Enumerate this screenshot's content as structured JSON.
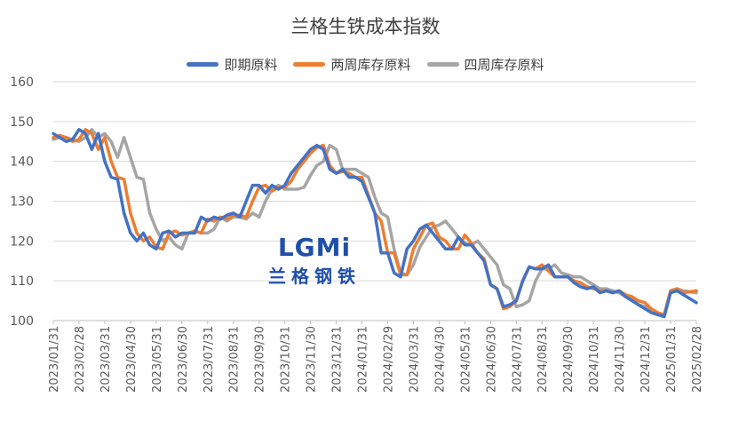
{
  "chart_data": {
    "type": "line",
    "title": "兰格生铁成本指数",
    "ylim": [
      100,
      160
    ],
    "yticks": [
      100,
      110,
      120,
      130,
      140,
      150,
      160
    ],
    "legend_position": "top",
    "grid": "horizontal",
    "x_tick_labels": [
      "2023/01/31",
      "2023/02/28",
      "2023/03/31",
      "2023/04/30",
      "2023/05/31",
      "2023/06/30",
      "2023/07/31",
      "2023/08/31",
      "2023/09/30",
      "2023/10/31",
      "2023/11/30",
      "2023/12/31",
      "2024/01/31",
      "2024/02/29",
      "2024/03/31",
      "2024/04/30",
      "2024/05/31",
      "2024/06/30",
      "2024/07/31",
      "2024/08/31",
      "2024/09/30",
      "2024/10/31",
      "2024/11/30",
      "2024/12/31",
      "2025/01/31",
      "2025/02/28"
    ],
    "series": [
      {
        "name": "即期原料",
        "color": "#4472c4",
        "points": [
          [
            0,
            147
          ],
          [
            0.25,
            146
          ],
          [
            0.5,
            145
          ],
          [
            0.75,
            145.5
          ],
          [
            1,
            148
          ],
          [
            1.25,
            147
          ],
          [
            1.5,
            143
          ],
          [
            1.75,
            147
          ],
          [
            2,
            140
          ],
          [
            2.25,
            136
          ],
          [
            2.5,
            135.5
          ],
          [
            2.75,
            127
          ],
          [
            3,
            122
          ],
          [
            3.25,
            120
          ],
          [
            3.5,
            122
          ],
          [
            3.75,
            119
          ],
          [
            4,
            118
          ],
          [
            4.25,
            122
          ],
          [
            4.5,
            122.5
          ],
          [
            4.75,
            121
          ],
          [
            5,
            122
          ],
          [
            5.25,
            122
          ],
          [
            5.5,
            122
          ],
          [
            5.75,
            126
          ],
          [
            6,
            125
          ],
          [
            6.25,
            126
          ],
          [
            6.5,
            125.5
          ],
          [
            6.75,
            126.5
          ],
          [
            7,
            127
          ],
          [
            7.25,
            126
          ],
          [
            7.5,
            130
          ],
          [
            7.75,
            134
          ],
          [
            8,
            134
          ],
          [
            8.25,
            132
          ],
          [
            8.5,
            134
          ],
          [
            8.75,
            133
          ],
          [
            9,
            134
          ],
          [
            9.25,
            137
          ],
          [
            9.5,
            139
          ],
          [
            9.75,
            141
          ],
          [
            10,
            143
          ],
          [
            10.25,
            144
          ],
          [
            10.5,
            143
          ],
          [
            10.75,
            138
          ],
          [
            11,
            137
          ],
          [
            11.25,
            138
          ],
          [
            11.5,
            136
          ],
          [
            11.75,
            136
          ],
          [
            12,
            135
          ],
          [
            12.25,
            131
          ],
          [
            12.5,
            127
          ],
          [
            12.75,
            117
          ],
          [
            13,
            117
          ],
          [
            13.25,
            112
          ],
          [
            13.5,
            111
          ],
          [
            13.75,
            118
          ],
          [
            14,
            120
          ],
          [
            14.25,
            123
          ],
          [
            14.5,
            124
          ],
          [
            14.75,
            122
          ],
          [
            15,
            120
          ],
          [
            15.25,
            118
          ],
          [
            15.5,
            118
          ],
          [
            15.75,
            121
          ],
          [
            16,
            119
          ],
          [
            16.25,
            119
          ],
          [
            16.5,
            117
          ],
          [
            16.75,
            115
          ],
          [
            17,
            109
          ],
          [
            17.25,
            108
          ],
          [
            17.5,
            103.5
          ],
          [
            17.75,
            104
          ],
          [
            18,
            105
          ],
          [
            18.25,
            110
          ],
          [
            18.5,
            113.5
          ],
          [
            18.75,
            113
          ],
          [
            19,
            113
          ],
          [
            19.25,
            114
          ],
          [
            19.5,
            111
          ],
          [
            19.75,
            111
          ],
          [
            20,
            111
          ],
          [
            20.25,
            109.5
          ],
          [
            20.5,
            108.5
          ],
          [
            20.75,
            108
          ],
          [
            21,
            108.5
          ],
          [
            21.25,
            107
          ],
          [
            21.5,
            107.5
          ],
          [
            21.75,
            107
          ],
          [
            22,
            107.5
          ],
          [
            22.25,
            106
          ],
          [
            22.5,
            105
          ],
          [
            22.75,
            104
          ],
          [
            23,
            103
          ],
          [
            23.25,
            102
          ],
          [
            23.5,
            101.5
          ],
          [
            23.75,
            101
          ],
          [
            24,
            107
          ],
          [
            24.25,
            107.5
          ],
          [
            24.5,
            106.5
          ],
          [
            25,
            104.5
          ]
        ]
      },
      {
        "name": "两周库存原料",
        "color": "#ed7d31",
        "points": [
          [
            0,
            146
          ],
          [
            0.25,
            146.5
          ],
          [
            0.5,
            146
          ],
          [
            0.75,
            145
          ],
          [
            1,
            145.5
          ],
          [
            1.25,
            148
          ],
          [
            1.5,
            147
          ],
          [
            1.75,
            143
          ],
          [
            2,
            146
          ],
          [
            2.25,
            140
          ],
          [
            2.5,
            136
          ],
          [
            2.75,
            135.5
          ],
          [
            3,
            127
          ],
          [
            3.25,
            122
          ],
          [
            3.5,
            120
          ],
          [
            3.75,
            121
          ],
          [
            4,
            118.5
          ],
          [
            4.25,
            118
          ],
          [
            4.5,
            122
          ],
          [
            4.75,
            122.5
          ],
          [
            5,
            121.5
          ],
          [
            5.25,
            122
          ],
          [
            5.5,
            122.5
          ],
          [
            5.75,
            122
          ],
          [
            6,
            125.5
          ],
          [
            6.25,
            125
          ],
          [
            6.5,
            126
          ],
          [
            6.75,
            125.5
          ],
          [
            7,
            126.5
          ],
          [
            7.25,
            126.5
          ],
          [
            7.5,
            126
          ],
          [
            7.75,
            130
          ],
          [
            8,
            133.5
          ],
          [
            8.25,
            134
          ],
          [
            8.5,
            132.5
          ],
          [
            8.75,
            133.5
          ],
          [
            9,
            133.5
          ],
          [
            9.25,
            135
          ],
          [
            9.5,
            138
          ],
          [
            9.75,
            140
          ],
          [
            10,
            142
          ],
          [
            10.25,
            143.5
          ],
          [
            10.5,
            144
          ],
          [
            10.75,
            139
          ],
          [
            11,
            137
          ],
          [
            11.25,
            137.5
          ],
          [
            11.5,
            137
          ],
          [
            11.75,
            136
          ],
          [
            12,
            136
          ],
          [
            12.25,
            131.5
          ],
          [
            12.5,
            127
          ],
          [
            12.75,
            125
          ],
          [
            13,
            117
          ],
          [
            13.25,
            117
          ],
          [
            13.5,
            111.5
          ],
          [
            13.75,
            111.5
          ],
          [
            14,
            118
          ],
          [
            14.25,
            121
          ],
          [
            14.5,
            124
          ],
          [
            14.75,
            124.5
          ],
          [
            15,
            121
          ],
          [
            15.25,
            120
          ],
          [
            15.5,
            118
          ],
          [
            15.75,
            118
          ],
          [
            16,
            121.5
          ],
          [
            16.25,
            119.5
          ],
          [
            16.5,
            117
          ],
          [
            16.75,
            115.5
          ],
          [
            17,
            109
          ],
          [
            17.25,
            108
          ],
          [
            17.5,
            103
          ],
          [
            17.75,
            103.5
          ],
          [
            18,
            105
          ],
          [
            18.25,
            110
          ],
          [
            18.5,
            113.5
          ],
          [
            18.75,
            113
          ],
          [
            19,
            114
          ],
          [
            19.25,
            112.5
          ],
          [
            19.5,
            111
          ],
          [
            19.75,
            111
          ],
          [
            20,
            111
          ],
          [
            20.25,
            110
          ],
          [
            20.5,
            109.5
          ],
          [
            20.75,
            108.5
          ],
          [
            21,
            108
          ],
          [
            21.25,
            107.5
          ],
          [
            21.5,
            107.5
          ],
          [
            21.75,
            107
          ],
          [
            22,
            107.5
          ],
          [
            22.25,
            106.5
          ],
          [
            22.5,
            106
          ],
          [
            22.75,
            105
          ],
          [
            23,
            104.5
          ],
          [
            23.25,
            103
          ],
          [
            23.5,
            102
          ],
          [
            23.75,
            101.5
          ],
          [
            24,
            107.5
          ],
          [
            24.25,
            108
          ],
          [
            24.5,
            107
          ],
          [
            25,
            107.5
          ]
        ]
      },
      {
        "name": "四周库存原料",
        "color": "#a5a5a5",
        "points": [
          [
            0,
            145.5
          ],
          [
            0.25,
            146
          ],
          [
            0.5,
            146
          ],
          [
            0.75,
            145.5
          ],
          [
            1,
            145
          ],
          [
            1.25,
            146
          ],
          [
            1.5,
            148
          ],
          [
            1.75,
            146
          ],
          [
            2,
            147
          ],
          [
            2.25,
            145
          ],
          [
            2.5,
            141
          ],
          [
            2.75,
            146
          ],
          [
            3,
            141
          ],
          [
            3.25,
            136
          ],
          [
            3.5,
            135.5
          ],
          [
            3.75,
            127
          ],
          [
            4,
            123
          ],
          [
            4.25,
            120
          ],
          [
            4.5,
            121
          ],
          [
            4.75,
            119
          ],
          [
            5,
            118
          ],
          [
            5.25,
            122
          ],
          [
            5.5,
            122.5
          ],
          [
            5.75,
            122
          ],
          [
            6,
            122
          ],
          [
            6.25,
            123
          ],
          [
            6.5,
            126
          ],
          [
            6.75,
            125
          ],
          [
            7,
            126
          ],
          [
            7.25,
            126
          ],
          [
            7.5,
            125.5
          ],
          [
            7.75,
            127
          ],
          [
            8,
            126
          ],
          [
            8.25,
            130
          ],
          [
            8.5,
            133
          ],
          [
            8.75,
            134
          ],
          [
            9,
            133
          ],
          [
            9.25,
            133
          ],
          [
            9.5,
            133
          ],
          [
            9.75,
            133.5
          ],
          [
            10,
            136.5
          ],
          [
            10.25,
            139
          ],
          [
            10.5,
            140
          ],
          [
            10.75,
            144
          ],
          [
            11,
            143
          ],
          [
            11.25,
            138
          ],
          [
            11.5,
            138
          ],
          [
            11.75,
            138
          ],
          [
            12,
            137
          ],
          [
            12.25,
            136
          ],
          [
            12.5,
            131
          ],
          [
            12.75,
            127
          ],
          [
            13,
            126
          ],
          [
            13.25,
            118
          ],
          [
            13.5,
            112
          ],
          [
            13.75,
            111.5
          ],
          [
            14,
            114
          ],
          [
            14.25,
            118.5
          ],
          [
            14.5,
            121
          ],
          [
            14.75,
            123.5
          ],
          [
            15,
            124
          ],
          [
            15.25,
            125
          ],
          [
            15.5,
            123
          ],
          [
            15.75,
            121
          ],
          [
            16,
            119.5
          ],
          [
            16.25,
            119
          ],
          [
            16.5,
            120
          ],
          [
            16.75,
            118
          ],
          [
            17,
            116
          ],
          [
            17.25,
            114
          ],
          [
            17.5,
            109
          ],
          [
            17.75,
            108
          ],
          [
            18,
            103.5
          ],
          [
            18.25,
            104
          ],
          [
            18.5,
            105
          ],
          [
            18.75,
            110
          ],
          [
            19,
            113
          ],
          [
            19.25,
            113
          ],
          [
            19.5,
            114
          ],
          [
            19.75,
            112
          ],
          [
            20,
            111.5
          ],
          [
            20.25,
            111
          ],
          [
            20.5,
            111
          ],
          [
            20.75,
            110
          ],
          [
            21,
            109
          ],
          [
            21.25,
            108
          ],
          [
            21.5,
            108
          ],
          [
            21.75,
            107.5
          ],
          [
            22,
            107
          ],
          [
            22.25,
            106
          ],
          [
            22.5,
            105.5
          ],
          [
            22.75,
            104
          ],
          [
            23,
            103.5
          ],
          [
            23.25,
            102
          ],
          [
            23.5,
            101.5
          ],
          [
            23.75,
            101
          ],
          [
            24,
            107.5
          ],
          [
            24.25,
            108
          ],
          [
            24.5,
            107.5
          ],
          [
            25,
            107
          ]
        ]
      }
    ]
  },
  "watermark": {
    "logo_text": "LGMi",
    "sub_text": "兰格钢铁"
  }
}
